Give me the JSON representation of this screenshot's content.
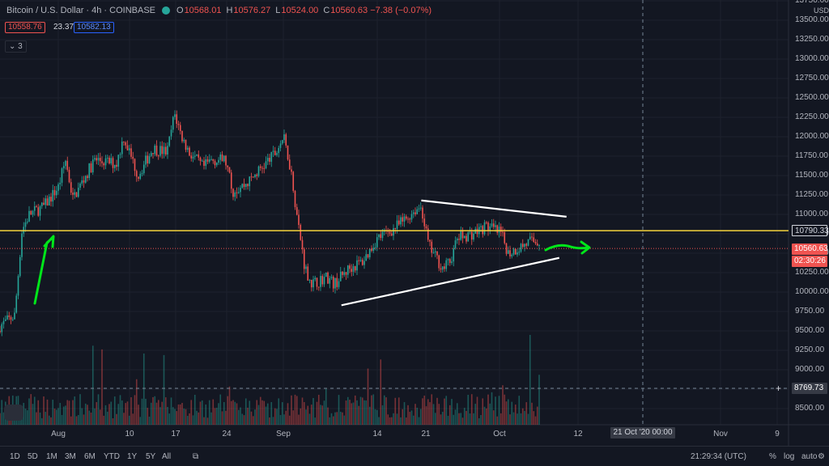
{
  "header": {
    "symbol": "Bitcoin / U.S. Dollar · 4h · COINBASE",
    "ohlc": [
      {
        "label": "O",
        "value": "10568.01"
      },
      {
        "label": "H",
        "value": "10576.27"
      },
      {
        "label": "L",
        "value": "10524.00"
      },
      {
        "label": "C",
        "value": "10560.63 −7.38 (−0.07%)"
      }
    ],
    "bid": "10558.76",
    "spread": "23.37",
    "ask": "10582.13",
    "indicators_count": "3"
  },
  "price_axis": {
    "currency": "USD",
    "ticks": [
      "13750.00",
      "13500.00",
      "13250.00",
      "13000.00",
      "12750.00",
      "12500.00",
      "12250.00",
      "12000.00",
      "11750.00",
      "11500.00",
      "11250.00",
      "11000.00",
      "10750.00",
      "10500.00",
      "10250.00",
      "10000.00",
      "9750.00",
      "9500.00",
      "9250.00",
      "9000.00",
      "8750.00",
      "8500.00"
    ],
    "tag_level": "10790.33",
    "tag_last": "10560.63",
    "tag_countdown": "02:30:26",
    "tag_crosshair": "8769.73"
  },
  "time_axis": {
    "ticks": [
      "Aug",
      "10",
      "17",
      "24",
      "Sep",
      "14",
      "21",
      "Oct",
      "12",
      "Nov",
      "9"
    ],
    "crosshair_date": "21 Oct '20   00:00"
  },
  "bottom_bar": {
    "ranges": [
      "1D",
      "5D",
      "1M",
      "3M",
      "6M",
      "YTD",
      "1Y",
      "5Y",
      "All"
    ],
    "clock": "21:29:34 (UTC)",
    "percent": "%",
    "log": "log",
    "auto": "auto"
  },
  "colors": {
    "background": "#131722",
    "up": "#26a69a",
    "down": "#ef5350",
    "level_line": "#f5d33c",
    "annotation": "#00e61a",
    "trendline": "#ffffff"
  },
  "chart_data": {
    "type": "candlestick",
    "symbol": "BTCUSD",
    "interval": "4h",
    "x_range": [
      "2020-07-24",
      "2020-10-09"
    ],
    "ylim": [
      8400,
      13800
    ],
    "horizontal_level": 10790.33,
    "last_price": 10560.63,
    "trendlines": [
      {
        "from": [
          "2020-09-09",
          9830
        ],
        "to": [
          "2020-10-09",
          10440
        ]
      },
      {
        "from": [
          "2020-09-20",
          11180
        ],
        "to": [
          "2020-10-10",
          10970
        ]
      }
    ],
    "price_path": [
      [
        "2020-07-23",
        9500
      ],
      [
        "2020-07-26",
        9700
      ],
      [
        "2020-07-27",
        10800
      ],
      [
        "2020-07-28",
        11000
      ],
      [
        "2020-07-30",
        11100
      ],
      [
        "2020-08-01",
        11350
      ],
      [
        "2020-08-02",
        11700
      ],
      [
        "2020-08-03",
        11200
      ],
      [
        "2020-08-06",
        11700
      ],
      [
        "2020-08-09",
        11650
      ],
      [
        "2020-08-10",
        12000
      ],
      [
        "2020-08-12",
        11500
      ],
      [
        "2020-08-14",
        11850
      ],
      [
        "2020-08-16",
        11800
      ],
      [
        "2020-08-17",
        12300
      ],
      [
        "2020-08-18",
        12000
      ],
      [
        "2020-08-19",
        11800
      ],
      [
        "2020-08-21",
        11600
      ],
      [
        "2020-08-22",
        11700
      ],
      [
        "2020-08-24",
        11700
      ],
      [
        "2020-08-25",
        11300
      ],
      [
        "2020-08-27",
        11400
      ],
      [
        "2020-08-29",
        11600
      ],
      [
        "2020-08-31",
        11800
      ],
      [
        "2020-09-01",
        12000
      ],
      [
        "2020-09-02",
        11600
      ],
      [
        "2020-09-03",
        10900
      ],
      [
        "2020-09-04",
        10300
      ],
      [
        "2020-09-05",
        10100
      ],
      [
        "2020-09-07",
        10200
      ],
      [
        "2020-09-08",
        10100
      ],
      [
        "2020-09-10",
        10300
      ],
      [
        "2020-09-12",
        10400
      ],
      [
        "2020-09-14",
        10700
      ],
      [
        "2020-09-16",
        10800
      ],
      [
        "2020-09-18",
        10950
      ],
      [
        "2020-09-19",
        11050
      ],
      [
        "2020-09-20",
        11100
      ],
      [
        "2020-09-21",
        10600
      ],
      [
        "2020-09-22",
        10450
      ],
      [
        "2020-09-23",
        10300
      ],
      [
        "2020-09-24",
        10400
      ],
      [
        "2020-09-25",
        10700
      ],
      [
        "2020-09-27",
        10750
      ],
      [
        "2020-09-29",
        10850
      ],
      [
        "2020-10-01",
        10750
      ],
      [
        "2020-10-02",
        10500
      ],
      [
        "2020-10-03",
        10550
      ],
      [
        "2020-10-05",
        10650
      ],
      [
        "2020-10-07",
        10650
      ],
      [
        "2020-10-08",
        10750
      ],
      [
        "2020-10-09",
        10560
      ]
    ]
  }
}
